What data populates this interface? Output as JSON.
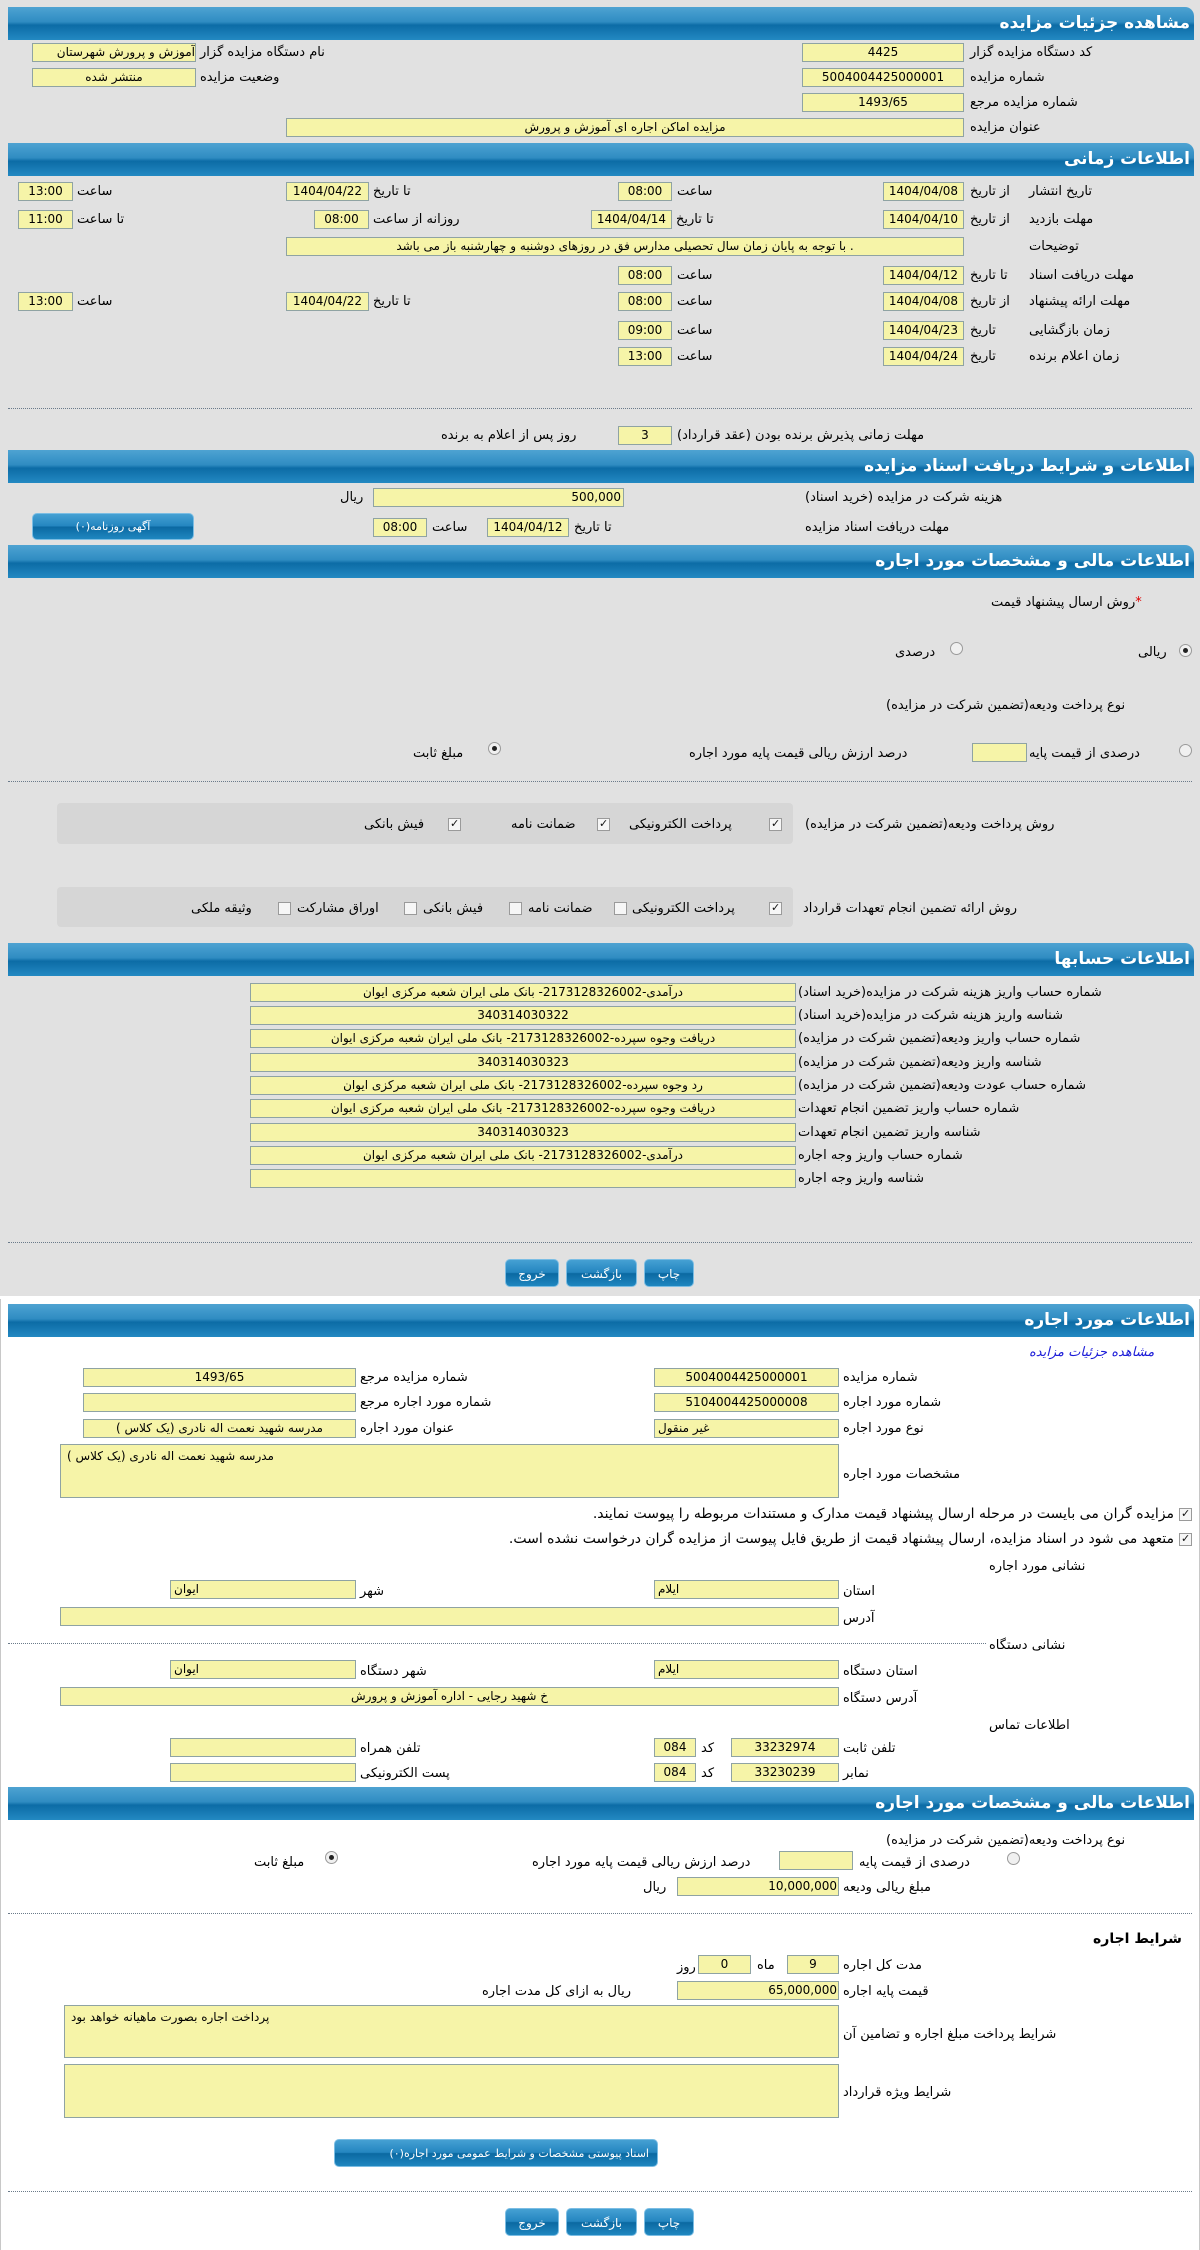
{
  "common": {
    "from_date": "از تاریخ",
    "to_date": "تا تاریخ",
    "time": "ساعت",
    "date": "تاریخ",
    "to_time": "تا ساعت",
    "daily_from": "روزانه از ساعت",
    "rial": "ریال",
    "code": "کد"
  },
  "details": {
    "title": "مشاهده جزئیات مزایده",
    "org_code_label": "کد دستگاه مزایده گزار",
    "org_code": "4425",
    "org_name_label": "نام دستگاه مزایده گزار",
    "org_name": "آموزش و پرورش شهرستان",
    "auction_no_label": "شماره مزایده",
    "auction_no": "5004004425000001",
    "status_label": "وضعیت مزایده",
    "status": "منتشر شده",
    "ref_no_label": "شماره مزایده مرجع",
    "ref_no": "1493/65",
    "subject_label": "عنوان مزایده",
    "subject": "مزایده اماکن اجاره ای آموزش و پرورش"
  },
  "timing": {
    "title": "اطلاعات زمانی",
    "publish": {
      "label": "تاریخ انتشار",
      "from_date": "1404/04/08",
      "from_time": "08:00",
      "to_date": "1404/04/22",
      "to_time": "13:00"
    },
    "visit": {
      "label": "مهلت بازدید",
      "from_date": "1404/04/10",
      "to_date": "1404/04/14",
      "daily_from": "08:00",
      "daily_to": "11:00"
    },
    "notes": {
      "label": "توضیحات",
      "value": ". با توجه به پایان زمان سال تحصیلی مدارس فق در روزهای دوشنبه و چهارشنبه باز می باشد"
    },
    "docs": {
      "label": "مهلت دریافت اسناد",
      "to_date": "1404/04/12",
      "to_time": "08:00"
    },
    "offer": {
      "label": "مهلت ارائه پیشنهاد",
      "from_date": "1404/04/08",
      "from_time": "08:00",
      "to_date": "1404/04/22",
      "to_time": "13:00"
    },
    "opening": {
      "label": "زمان بازگشایی",
      "date": "1404/04/23",
      "time": "09:00"
    },
    "winner": {
      "label": "زمان اعلام برنده",
      "date": "1404/04/24",
      "time": "13:00"
    },
    "acceptance": {
      "label": "مهلت زمانی پذیرش برنده بودن (عقد قرارداد)",
      "days": "3",
      "suffix": "روز پس از اعلام به برنده"
    }
  },
  "documents": {
    "title": "اطلاعات و شرایط دریافت اسناد مزایده",
    "fee_label": "هزینه شرکت در مزایده (خرید اسناد)",
    "fee": "500,000",
    "deadline_label": "مهلت دریافت اسناد مزایده",
    "deadline_date": "1404/04/12",
    "deadline_time": "08:00",
    "newspaper_button": "آگهی روزنامه(۰)"
  },
  "financial": {
    "title": "اطلاعات مالی و مشخصات مورد اجاره",
    "price_method_label": "روش ارسال پیشنهاد قیمت",
    "required_mark": "*",
    "price_methods": [
      {
        "label": "ریالی",
        "selected": true
      },
      {
        "label": "درصدی",
        "selected": false
      }
    ],
    "deposit_type_label": "نوع پرداخت ودیعه(تضمین شرکت در مزایده)",
    "deposit_percent_label": "درصدی از قیمت پایه",
    "deposit_percent_value": "",
    "deposit_percent_suffix": "درصد ارزش ریالی قیمت پایه مورد اجاره",
    "deposit_fixed_label": "مبلغ ثابت",
    "deposit_type_selected": "مبلغ ثابت",
    "deposit_pay_label": "روش پرداخت ودیعه(تضمین شرکت در مزایده)",
    "deposit_pay_options": [
      {
        "label": "پرداخت الکترونیکی",
        "checked": true
      },
      {
        "label": "ضمانت نامه",
        "checked": true
      },
      {
        "label": "فیش بانکی",
        "checked": true
      }
    ],
    "guarantee_label": "روش ارائه تضمین انجام تعهدات قرارداد",
    "guarantee_options": [
      {
        "label": "پرداخت الکترونیکی",
        "checked": true
      },
      {
        "label": "ضمانت نامه",
        "checked": false
      },
      {
        "label": "فیش بانکی",
        "checked": false
      },
      {
        "label": "اوراق مشارکت",
        "checked": false
      },
      {
        "label": "وثیقه ملکی",
        "checked": false
      }
    ]
  },
  "accounts": {
    "title": "اطلاعات حسابها",
    "rows": [
      {
        "label": "شماره حساب واریز هزینه شرکت در مزایده(خرید اسناد)",
        "value": "درآمدی-2173128326002- بانک ملی ایران شعبه مرکزی ایوان"
      },
      {
        "label": "شناسه واریز هزینه شرکت در مزایده(خرید اسناد)",
        "value": "340314030322"
      },
      {
        "label": "شماره حساب واریز ودیعه(تضمین شرکت در مزایده)",
        "value": "دریافت وجوه سپرده-2173128326002- بانک ملی ایران شعبه مرکزی ایوان"
      },
      {
        "label": "شناسه واریز ودیعه(تضمین شرکت در مزایده)",
        "value": "340314030323"
      },
      {
        "label": "شماره حساب عودت ودیعه(تضمین شرکت در مزایده)",
        "value": "رد وجوه سپرده-2173128326002- بانک ملی ایران شعبه مرکزی ایوان"
      },
      {
        "label": "شماره حساب واریز تضمین انجام تعهدات",
        "value": "دریافت وجوه سپرده-2173128326002- بانک ملی ایران شعبه مرکزی ایوان"
      },
      {
        "label": "شناسه واریز تضمین انجام تعهدات",
        "value": "340314030323"
      },
      {
        "label": "شماره حساب واریز وجه اجاره",
        "value": "درآمدی-2173128326002- بانک ملی ایران شعبه مرکزی ایوان"
      },
      {
        "label": "شناسه واریز وجه اجاره",
        "value": ""
      }
    ]
  },
  "actions": {
    "print": "چاپ",
    "back": "بازگشت",
    "exit": "خروج"
  },
  "lease": {
    "title": "اطلاعات مورد اجاره",
    "details_link": "مشاهده جزئیات مزایده",
    "auction_no_label": "شماره مزایده",
    "auction_no": "5004004425000001",
    "ref_no_label": "شماره مزایده مرجع",
    "ref_no": "1493/65",
    "item_no_label": "شماره مورد اجاره",
    "item_no": "5104004425000008",
    "item_ref_label": "شماره مورد اجاره مرجع",
    "item_ref": "",
    "item_type_label": "نوع مورد اجاره",
    "item_type": "غیر منقول",
    "item_title_label": "عنوان مورد اجاره",
    "item_title": "مدرسه شهید نعمت اله نادری (یک کلاس )",
    "spec_label": "مشخصات مورد اجاره",
    "spec": "مدرسه شهید نعمت اله نادری (یک کلاس )",
    "notice1": "مزایده گران می بایست در مرحله ارسال پیشنهاد قیمت مدارک و مستندات مربوطه را پیوست نمایند.",
    "notice2": "متعهد می شود در اسناد مزایده، ارسال پیشنهاد قیمت از طریق فایل پیوست از مزایده گران درخواست نشده است.",
    "address_title": "نشانی مورد اجاره",
    "province_label": "استان",
    "province": "ایلام",
    "city_label": "شهر",
    "city": "ایوان",
    "address_label": "آدرس",
    "address": "",
    "org_address_title": "نشانی دستگاه",
    "org_province_label": "استان دستگاه",
    "org_province": "ایلام",
    "org_city_label": "شهر دستگاه",
    "org_city": "ایوان",
    "org_address_label": "آدرس دستگاه",
    "org_address": "خ شهید رجایی - اداره آموزش و پرورش",
    "contact_title": "اطلاعات تماس",
    "phone_label": "تلفن ثابت",
    "phone": "33232974",
    "phone_code": "084",
    "mobile_label": "تلفن همراه",
    "mobile": "",
    "fax_label": "نمابر",
    "fax": "33230239",
    "fax_code": "084",
    "email_label": "پست الکترونیکی",
    "email": ""
  },
  "lease_financial": {
    "title": "اطلاعات مالی و مشخصات مورد اجاره",
    "deposit_type_label": "نوع پرداخت ودیعه(تضمین شرکت در مزایده)",
    "percent_label": "درصدی از قیمت پایه",
    "percent_value": "",
    "percent_suffix": "درصد ارزش ریالی قیمت پایه مورد اجاره",
    "fixed_label": "مبلغ ثابت",
    "selected": "مبلغ ثابت",
    "deposit_amount_label": "مبلغ ریالی ودیعه",
    "deposit_amount": "10,000,000",
    "terms_title": "شرایط اجاره",
    "duration_label": "مدت کل اجاره",
    "months": "9",
    "months_label": "ماه",
    "days": "0",
    "days_label": "روز",
    "base_price_label": "قیمت پایه اجاره",
    "base_price": "65,000,000",
    "base_price_suffix": "ریال به ازای کل مدت اجاره",
    "payment_terms_label": "شرایط پرداخت مبلغ اجاره و تضامین آن",
    "payment_terms": "پرداخت اجاره بصورت ماهیانه خواهد بود",
    "special_terms_label": "شرایط ویژه قرارداد",
    "special_terms": "",
    "attachments_button": "اسناد پیوستی مشخصات و شرایط عمومی مورد اجاره(۰)"
  }
}
